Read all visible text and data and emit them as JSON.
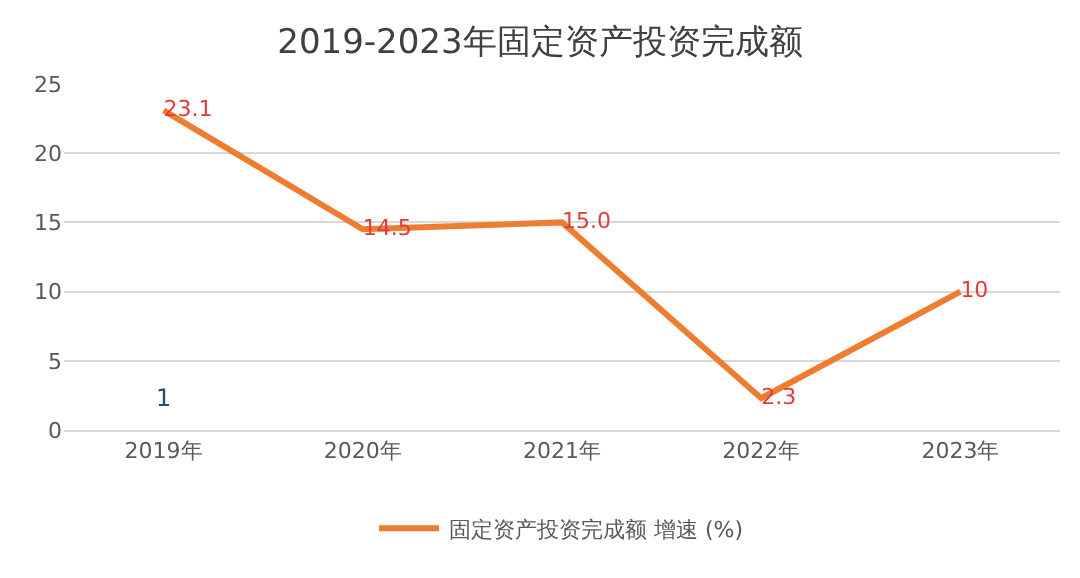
{
  "chart_data": {
    "type": "line",
    "title": "2019-2023年固定资产投资完成额",
    "categories": [
      "2019年",
      "2020年",
      "2021年",
      "2022年",
      "2023年"
    ],
    "series": [
      {
        "name": "固定资产投资完成额 增速 (%)",
        "color": "#ed7d31",
        "values": [
          23.1,
          14.5,
          15.0,
          2.3,
          10
        ],
        "value_labels": [
          "23.1",
          "14.5",
          "15.0",
          "2.3",
          "10"
        ]
      }
    ],
    "ylim": [
      0,
      25
    ],
    "yticks": [
      0,
      5,
      10,
      15,
      20,
      25
    ],
    "grid": "y",
    "legend": "bottom",
    "marker": "none",
    "line_style": "solid",
    "annotations": [
      "1"
    ]
  }
}
